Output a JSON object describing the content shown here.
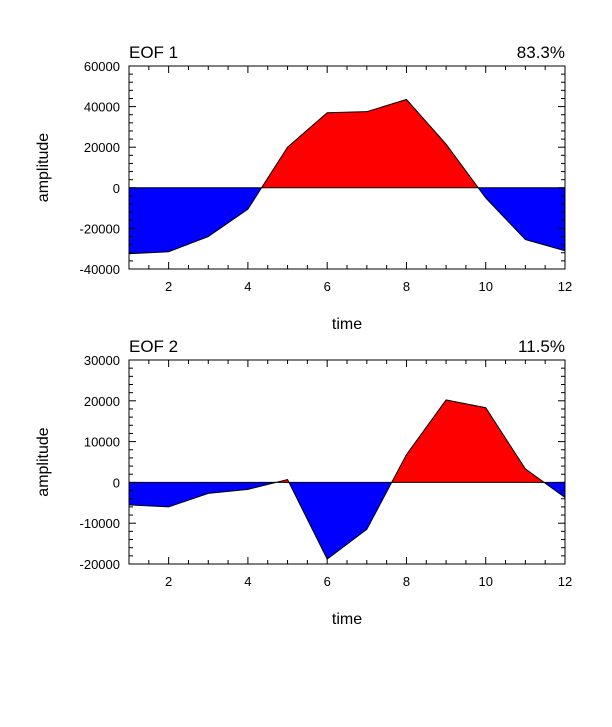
{
  "chart_data": [
    {
      "type": "area",
      "title": "EOF 1",
      "percent_label": "83.3%",
      "xlabel": "time",
      "ylabel": "amplitude",
      "xlim": [
        1,
        12
      ],
      "ylim": [
        -40000,
        60000
      ],
      "x_ticks": [
        "2",
        "4",
        "6",
        "8",
        "10",
        "12"
      ],
      "y_ticks": [
        "60000",
        "40000",
        "20000",
        "0",
        "-20000",
        "-40000"
      ],
      "x": [
        1,
        2,
        3,
        4,
        5,
        6,
        7,
        8,
        9,
        10,
        11,
        12
      ],
      "values": [
        -32500,
        -31500,
        -24000,
        -10500,
        20000,
        37000,
        37500,
        43500,
        21500,
        -5000,
        -25500,
        -31000
      ],
      "positive_color": "#ff0000",
      "negative_color": "#0000ff"
    },
    {
      "type": "area",
      "title": "EOF 2",
      "percent_label": "11.5%",
      "xlabel": "time",
      "ylabel": "amplitude",
      "xlim": [
        1,
        12
      ],
      "ylim": [
        -20000,
        30000
      ],
      "x_ticks": [
        "2",
        "4",
        "6",
        "8",
        "10",
        "12"
      ],
      "y_ticks": [
        "30000",
        "20000",
        "10000",
        "0",
        "-10000",
        "-20000"
      ],
      "x": [
        1,
        2,
        3,
        4,
        5,
        6,
        7,
        8,
        9,
        10,
        11,
        12
      ],
      "values": [
        -5500,
        -6000,
        -2700,
        -1700,
        700,
        -18800,
        -11500,
        6800,
        20200,
        18300,
        3300,
        -3700
      ],
      "positive_color": "#ff0000",
      "negative_color": "#0000ff"
    }
  ]
}
